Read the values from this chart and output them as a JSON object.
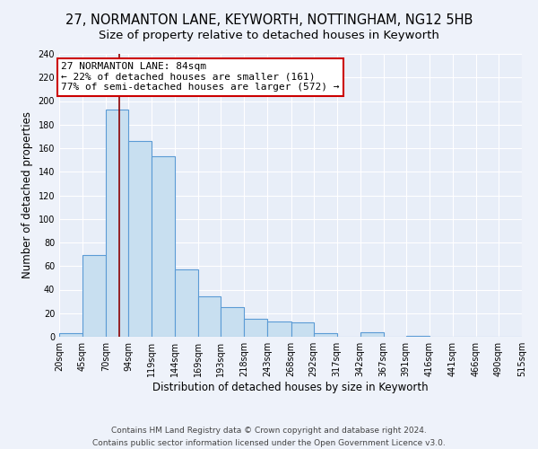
{
  "title1": "27, NORMANTON LANE, KEYWORTH, NOTTINGHAM, NG12 5HB",
  "title2": "Size of property relative to detached houses in Keyworth",
  "xlabel": "Distribution of detached houses by size in Keyworth",
  "ylabel": "Number of detached properties",
  "bin_edges": [
    20,
    45,
    70,
    94,
    119,
    144,
    169,
    193,
    218,
    243,
    268,
    292,
    317,
    342,
    367,
    391,
    416,
    441,
    466,
    490,
    515
  ],
  "bar_heights": [
    3,
    69,
    193,
    166,
    153,
    57,
    34,
    25,
    15,
    13,
    12,
    3,
    0,
    4,
    0,
    1,
    0,
    0,
    0,
    0
  ],
  "bar_color": "#c8dff0",
  "bar_edge_color": "#5b9bd5",
  "vline_x": 84,
  "vline_color": "#8b0000",
  "annotation_box_text": "27 NORMANTON LANE: 84sqm\n← 22% of detached houses are smaller (161)\n77% of semi-detached houses are larger (572) →",
  "annotation_box_color": "white",
  "annotation_box_edge_color": "#cc0000",
  "ylim": [
    0,
    240
  ],
  "yticks": [
    0,
    20,
    40,
    60,
    80,
    100,
    120,
    140,
    160,
    180,
    200,
    220,
    240
  ],
  "xtick_labels": [
    "20sqm",
    "45sqm",
    "70sqm",
    "94sqm",
    "119sqm",
    "144sqm",
    "169sqm",
    "193sqm",
    "218sqm",
    "243sqm",
    "268sqm",
    "292sqm",
    "317sqm",
    "342sqm",
    "367sqm",
    "391sqm",
    "416sqm",
    "441sqm",
    "466sqm",
    "490sqm",
    "515sqm"
  ],
  "footer1": "Contains HM Land Registry data © Crown copyright and database right 2024.",
  "footer2": "Contains public sector information licensed under the Open Government Licence v3.0.",
  "bg_color": "#eef2fa",
  "plot_bg_color": "#e8eef8",
  "grid_color": "#ffffff",
  "title1_fontsize": 10.5,
  "title2_fontsize": 9.5,
  "axis_label_fontsize": 8.5,
  "tick_fontsize": 7,
  "annotation_fontsize": 8,
  "footer_fontsize": 6.5
}
